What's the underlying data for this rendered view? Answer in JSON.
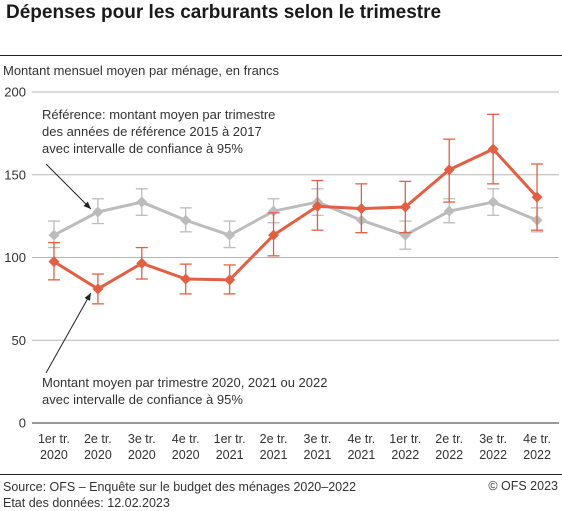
{
  "header": {
    "title": "Dépenses pour les carburants selon le trimestre",
    "subtitle": "Montant mensuel moyen par ménage, en francs"
  },
  "footer": {
    "source": "Source: OFS – Enquête sur le budget des ménages 2020–2022",
    "date": "Etat des données: 12.02.2023",
    "copyright": "© OFS 2023"
  },
  "chart_data": {
    "type": "line",
    "categories": [
      [
        "1er tr.",
        "2020"
      ],
      [
        "2e tr.",
        "2020"
      ],
      [
        "3e tr.",
        "2020"
      ],
      [
        "4e tr.",
        "2020"
      ],
      [
        "1er tr.",
        "2021"
      ],
      [
        "2e tr.",
        "2021"
      ],
      [
        "3e tr.",
        "2021"
      ],
      [
        "4e tr.",
        "2021"
      ],
      [
        "1er tr.",
        "2022"
      ],
      [
        "2e tr.",
        "2022"
      ],
      [
        "3e tr.",
        "2022"
      ],
      [
        "4e tr.",
        "2022"
      ]
    ],
    "ylim": [
      0,
      200
    ],
    "yticks": [
      "0",
      "50",
      "100",
      "150",
      "200"
    ],
    "grid": true,
    "series": [
      {
        "name": "Référence: montant moyen par trimestre des années de référence 2015 à 2017 avec intervalle de confiance à 95%",
        "color": "#bcbcbc",
        "values": [
          113.5,
          127.5,
          133.5,
          122.5,
          113.5,
          128,
          133.5,
          122.5,
          113.5,
          128,
          133.5,
          122.5
        ],
        "lower": [
          106,
          120.5,
          125.5,
          115.5,
          106,
          121,
          125.5,
          115,
          105,
          121,
          125.5,
          115.5
        ],
        "upper": [
          122,
          135.5,
          141.5,
          130,
          122,
          135.5,
          141.5,
          130,
          122,
          135.5,
          141.5,
          130
        ]
      },
      {
        "name": "Montant moyen par trimestre 2020, 2021 ou 2022 avec intervalle de confiance à 95%",
        "color": "#e35f44",
        "values": [
          97.5,
          81,
          96.5,
          87,
          86.5,
          113.5,
          131,
          129.5,
          130.5,
          153,
          165.5,
          136.5
        ],
        "lower": [
          86.5,
          72,
          87,
          78,
          78,
          101,
          116.5,
          115,
          115,
          133.5,
          144.5,
          116.5
        ],
        "upper": [
          109,
          90,
          106,
          96,
          95.5,
          127,
          146.5,
          144.5,
          146,
          171.5,
          186.5,
          156.5
        ]
      }
    ],
    "annotations": {
      "reference": [
        "Référence: montant moyen par trimestre",
        "des années de référence 2015 à 2017",
        "avec intervalle de confiance à 95%"
      ],
      "current": [
        "Montant moyen par trimestre 2020, 2021 ou 2022",
        "avec intervalle de confiance à 95%"
      ]
    }
  }
}
